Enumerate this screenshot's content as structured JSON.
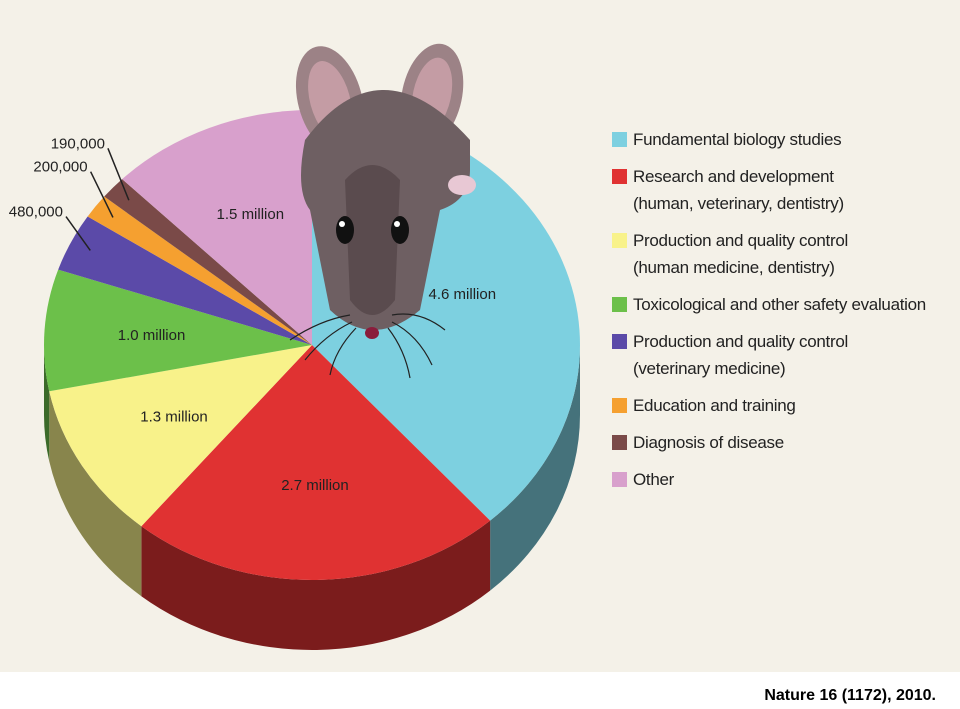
{
  "chart_data": {
    "type": "pie3d",
    "categories": [
      "Fundamental biology studies",
      "Research and development\n(human, veterinary, dentistry)",
      "Production and quality control\n(human medicine, dentistry)",
      "Toxicological and other safety evaluation",
      "Production and quality control\n(veterinary medicine)",
      "Education and training",
      "Diagnosis of disease",
      "Other"
    ],
    "values": [
      4600000,
      2700000,
      1300000,
      1000000,
      480000,
      200000,
      190000,
      1500000
    ],
    "value_labels": [
      "4.6 million",
      "2.7 million",
      "1.3 million",
      "1.0 million",
      "480,000",
      "200,000",
      "190,000",
      "1.5 million"
    ],
    "colors": [
      "#7dd0e0",
      "#e03232",
      "#f8f28a",
      "#6cc04a",
      "#5b4aa8",
      "#f5a030",
      "#7a4a48",
      "#d8a0cc"
    ],
    "legend": "right"
  },
  "source": "Nature 16 (1172), 2010."
}
